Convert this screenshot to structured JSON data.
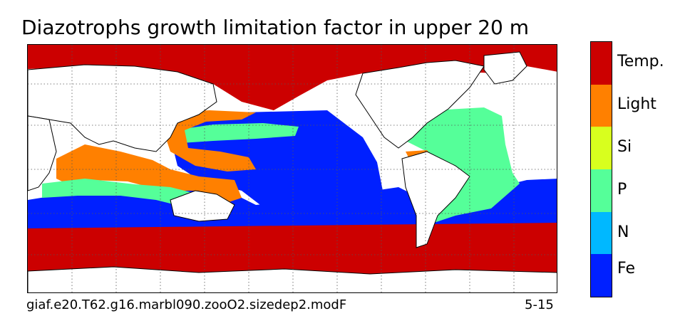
{
  "title": "Diazotrophs growth limitation factor in upper 20 m",
  "footer": {
    "run_name": "giaf.e20.T62.g16.marbl090.zooO2.sizedep2.modF",
    "period": "5-15"
  },
  "legend": {
    "categories": [
      {
        "label": "Temp.",
        "color": "#cc0000"
      },
      {
        "label": "Light",
        "color": "#ff8000"
      },
      {
        "label": "Si",
        "color": "#d8ff1e"
      },
      {
        "label": "P",
        "color": "#55ff99"
      },
      {
        "label": "N",
        "color": "#00b8ff"
      },
      {
        "label": "Fe",
        "color": "#0020ff"
      }
    ]
  },
  "map": {
    "projection": "cylindrical, centered on Pacific",
    "land_color": "#ffffff",
    "coastline_color": "#000000",
    "graticule": "dotted"
  }
}
